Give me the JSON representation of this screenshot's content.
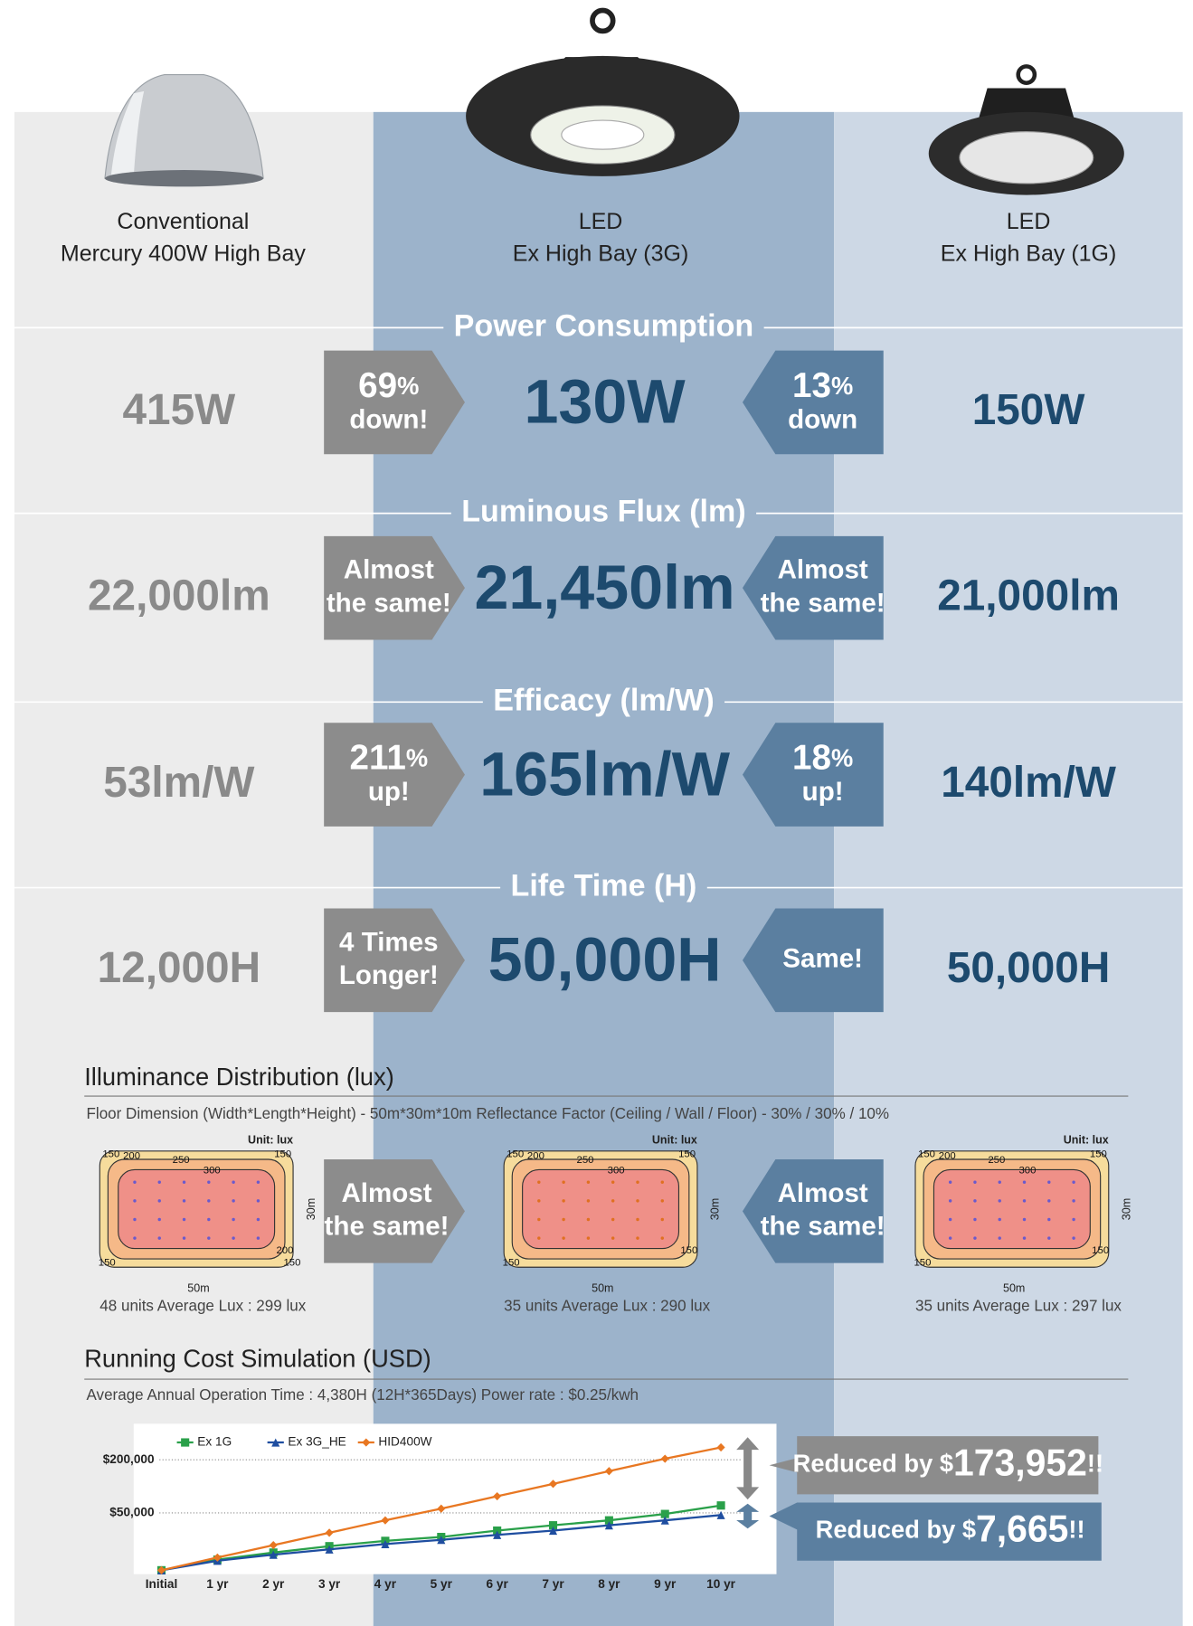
{
  "header": {
    "columns": [
      {
        "line1": "Conventional",
        "line2": "Mercury 400W High Bay"
      },
      {
        "line1": "LED",
        "line2": "Ex High Bay (3G)"
      },
      {
        "line1": "LED",
        "line2": "Ex High Bay (1G)"
      }
    ]
  },
  "sections": [
    {
      "title": "Power Consumption",
      "values": [
        "415W",
        "130W",
        "150W"
      ],
      "badges": [
        {
          "number": "69",
          "unit": "%",
          "text": "down!"
        },
        {
          "number": "13",
          "unit": "%",
          "text": "down"
        }
      ]
    },
    {
      "title": "Luminous Flux (lm)",
      "values": [
        "22,000lm",
        "21,450lm",
        "21,000lm"
      ],
      "badges": [
        {
          "line1": "Almost",
          "line2": "the same!"
        },
        {
          "line1": "Almost",
          "line2": "the same!"
        }
      ]
    },
    {
      "title": "Efficacy (lm/W)",
      "values": [
        "53lm/W",
        "165lm/W",
        "140lm/W"
      ],
      "badges": [
        {
          "number": "211",
          "unit": "%",
          "text": "up!"
        },
        {
          "number": "18",
          "unit": "%",
          "text": "up!"
        }
      ]
    },
    {
      "title": "Life Time (H)",
      "values": [
        "12,000H",
        "50,000H",
        "50,000H"
      ],
      "badges": [
        {
          "line1": "4 Times",
          "line2": "Longer!"
        },
        {
          "line1": "Same!"
        }
      ]
    }
  ],
  "illuminance": {
    "title": "Illuminance Distribution (lux)",
    "subtitle": "Floor Dimension (Width*Length*Height) -  50m*30m*10m     Reflectance Factor (Ceiling / Wall / Floor) - 30% / 30% / 10%",
    "unit": "Unit: lux",
    "width": "50m",
    "height": "30m",
    "maps": [
      {
        "labels": [
          "150",
          "200",
          "250",
          "300",
          "150",
          "200",
          "150",
          "150"
        ],
        "caption": "48 units   Average Lux : 299 lux"
      },
      {
        "labels": [
          "150",
          "200",
          "250",
          "300",
          "150",
          "150",
          "150"
        ],
        "caption": "35 units   Average Lux : 290 lux"
      },
      {
        "labels": [
          "150",
          "200",
          "250",
          "300",
          "150",
          "150",
          "150"
        ],
        "caption": "35 units   Average Lux : 297 lux"
      }
    ],
    "badges": [
      {
        "line1": "Almost",
        "line2": "the same!"
      },
      {
        "line1": "Almost",
        "line2": "the same!"
      }
    ]
  },
  "running_cost": {
    "title": "Running Cost Simulation (USD)",
    "subtitle": "Average Annual Operation Time : 4,380H (12H*365Days)     Power rate : $0.25/kwh",
    "callouts": [
      {
        "prefix": "Reduced by $",
        "amount": "173,952",
        "suffix": "!!"
      },
      {
        "prefix": "Reduced by $",
        "amount": "7,665",
        "suffix": "!!"
      }
    ]
  },
  "chart_data": {
    "type": "line",
    "categories": [
      "Initial",
      "1 yr",
      "2 yr",
      "3 yr",
      "4 yr",
      "5 yr",
      "6 yr",
      "7 yr",
      "8 yr",
      "9 yr",
      "10 yr"
    ],
    "series": [
      {
        "name": "Ex 1G",
        "color": "#2aa04a",
        "marker": "square",
        "values": [
          -112000,
          -82000,
          -62000,
          -44000,
          -29000,
          -18000,
          0,
          15000,
          29000,
          47000,
          71000
        ]
      },
      {
        "name": "Ex 3G_HE",
        "color": "#1f4ea0",
        "marker": "triangle",
        "values": [
          -112000,
          -85000,
          -68000,
          -53000,
          -38000,
          -26000,
          -12000,
          0,
          15000,
          29000,
          44000
        ]
      },
      {
        "name": "HID400W",
        "color": "#e87722",
        "marker": "diamond",
        "values": [
          -112000,
          -76000,
          -41000,
          -6000,
          29000,
          62000,
          97000,
          132000,
          168000,
          203000,
          235000
        ]
      }
    ],
    "ylim": [
      -120000,
      290000
    ],
    "yticks": [
      {
        "value": 50000,
        "label": "$50,000"
      },
      {
        "value": 200000,
        "label": "$200,000"
      }
    ],
    "grid": true
  }
}
